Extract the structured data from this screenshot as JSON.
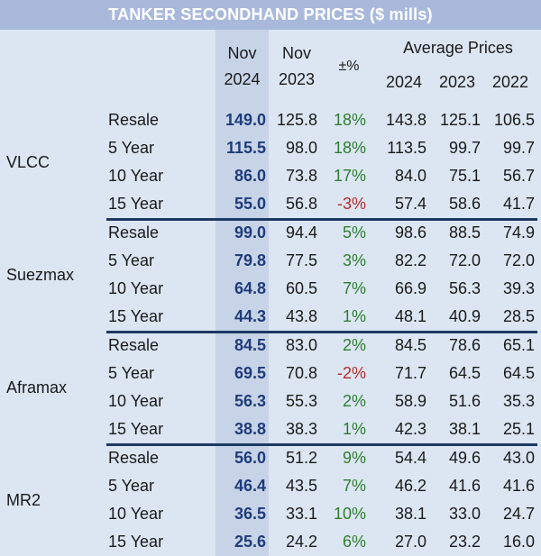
{
  "title": "TANKER SECONDHAND PRICES ($ mills)",
  "header": {
    "nov2024": [
      "Nov",
      "2024"
    ],
    "nov2023": [
      "Nov",
      "2023"
    ],
    "change": "±%",
    "avg": "Average Prices",
    "years": [
      "2024",
      "2023",
      "2022"
    ]
  },
  "groups": [
    {
      "name": "VLCC",
      "rows": [
        {
          "age": "Resale",
          "v": [
            "149.0",
            "125.8",
            "18%",
            "143.8",
            "125.1",
            "106.5"
          ]
        },
        {
          "age": "5 Year",
          "v": [
            "115.5",
            "98.0",
            "18%",
            "113.5",
            "99.7",
            "99.7"
          ]
        },
        {
          "age": "10 Year",
          "v": [
            "86.0",
            "73.8",
            "17%",
            "84.0",
            "75.1",
            "56.7"
          ]
        },
        {
          "age": "15 Year",
          "v": [
            "55.0",
            "56.8",
            "-3%",
            "57.4",
            "58.6",
            "41.7"
          ]
        }
      ]
    },
    {
      "name": "Suezmax",
      "rows": [
        {
          "age": "Resale",
          "v": [
            "99.0",
            "94.4",
            "5%",
            "98.6",
            "88.5",
            "74.9"
          ]
        },
        {
          "age": "5 Year",
          "v": [
            "79.8",
            "77.5",
            "3%",
            "82.2",
            "72.0",
            "72.0"
          ]
        },
        {
          "age": "10 Year",
          "v": [
            "64.8",
            "60.5",
            "7%",
            "66.9",
            "56.3",
            "39.3"
          ]
        },
        {
          "age": "15 Year",
          "v": [
            "44.3",
            "43.8",
            "1%",
            "48.1",
            "40.9",
            "28.5"
          ]
        }
      ]
    },
    {
      "name": "Aframax",
      "rows": [
        {
          "age": "Resale",
          "v": [
            "84.5",
            "83.0",
            "2%",
            "84.5",
            "78.6",
            "65.1"
          ]
        },
        {
          "age": "5 Year",
          "v": [
            "69.5",
            "70.8",
            "-2%",
            "71.7",
            "64.5",
            "64.5"
          ]
        },
        {
          "age": "10 Year",
          "v": [
            "56.3",
            "55.3",
            "2%",
            "58.9",
            "51.6",
            "35.3"
          ]
        },
        {
          "age": "15 Year",
          "v": [
            "38.8",
            "38.3",
            "1%",
            "42.3",
            "38.1",
            "25.1"
          ]
        }
      ]
    },
    {
      "name": "MR2",
      "rows": [
        {
          "age": "Resale",
          "v": [
            "56.0",
            "51.2",
            "9%",
            "54.4",
            "49.6",
            "43.0"
          ]
        },
        {
          "age": "5 Year",
          "v": [
            "46.4",
            "43.5",
            "7%",
            "46.2",
            "41.6",
            "41.6"
          ]
        },
        {
          "age": "10 Year",
          "v": [
            "36.5",
            "33.1",
            "10%",
            "38.1",
            "33.0",
            "24.7"
          ]
        },
        {
          "age": "15 Year",
          "v": [
            "25.6",
            "24.2",
            "6%",
            "27.0",
            "23.2",
            "16.0"
          ]
        }
      ]
    }
  ],
  "colors": {
    "positive": "#2e7d32",
    "negative": "#b42d2d",
    "current": "#1f3b7a"
  }
}
